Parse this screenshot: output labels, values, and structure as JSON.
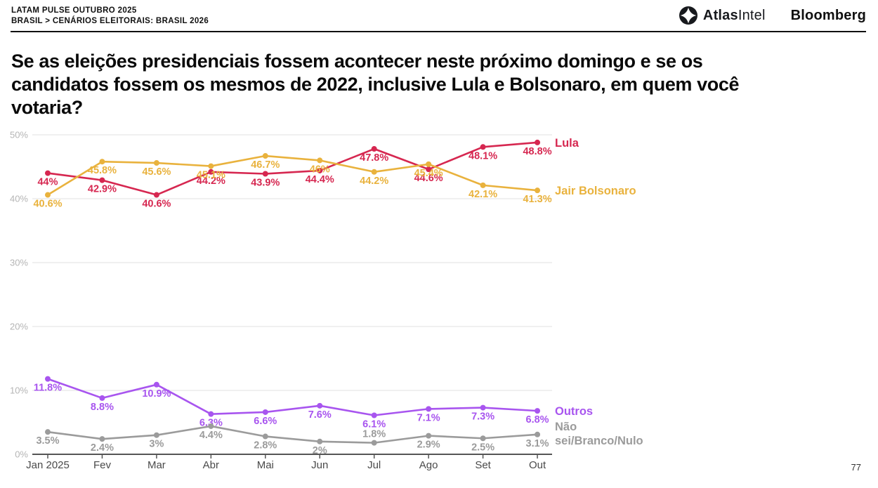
{
  "header": {
    "kicker_line1": "LATAM PULSE OUTUBRO 2025",
    "kicker_line2": "BRASIL > CENÁRIOS ELEITORAIS: BRASIL 2026",
    "atlas_logo_bold": "Atlas",
    "atlas_logo_regular": "Intel",
    "bloomberg_logo": "Bloomberg"
  },
  "title": "Se as eleições presidenciais fossem acontecer neste próximo domingo e se os candidatos fossem os mesmos de 2022, inclusive Lula e Bolsonaro, em quem você votaria?",
  "page_number": "77",
  "chart_data": {
    "type": "line",
    "x": [
      "Jan 2025",
      "Fev",
      "Mar",
      "Abr",
      "Mai",
      "Jun",
      "Jul",
      "Ago",
      "Set",
      "Out"
    ],
    "ylim": [
      0,
      50
    ],
    "yticks": [
      0,
      10,
      20,
      30,
      40,
      50
    ],
    "ytick_labels": [
      "0%",
      "10%",
      "20%",
      "30%",
      "40%",
      "50%"
    ],
    "grid": true,
    "legend_position": "right",
    "colors": {
      "grid": "#e7e7e7",
      "axis": "#555555",
      "ytick_label": "#b5b5b5",
      "xtick_label": "#4a4a4a"
    },
    "series": [
      {
        "name": "Lula",
        "color": "#d62750",
        "values": [
          44,
          42.9,
          40.6,
          44.2,
          43.9,
          44.4,
          47.8,
          44.6,
          48.1,
          48.8
        ],
        "labels": [
          "44%",
          "42.9%",
          "40.6%",
          "44.2%",
          "43.9%",
          "44.4%",
          "47.8%",
          "44.6%",
          "48.1%",
          "48.8%"
        ],
        "label_positions": [
          "below",
          "below",
          "below",
          "below",
          "below",
          "below",
          "below",
          "below",
          "below",
          "below"
        ]
      },
      {
        "name": "Jair Bolsonaro",
        "color": "#e9b23d",
        "values": [
          40.6,
          45.8,
          45.6,
          45.1,
          46.7,
          46,
          44.2,
          45.4,
          42.1,
          41.3
        ],
        "labels": [
          "40.6%",
          "45.8%",
          "45.6%",
          "45.1%",
          "46.7%",
          "46%",
          "44.2%",
          "45.4%",
          "42.1%",
          "41.3%"
        ],
        "label_positions": [
          "below",
          "below",
          "below",
          "below",
          "below",
          "below",
          "below",
          "below",
          "below",
          "below"
        ]
      },
      {
        "name": "Outros",
        "color": "#a855ef",
        "values": [
          11.8,
          8.8,
          10.9,
          6.3,
          6.6,
          7.6,
          6.1,
          7.1,
          7.3,
          6.8
        ],
        "labels": [
          "11.8%",
          "8.8%",
          "10.9%",
          "6.3%",
          "6.6%",
          "7.6%",
          "6.1%",
          "7.1%",
          "7.3%",
          "6.8%"
        ],
        "label_positions": [
          "below",
          "below",
          "below",
          "below",
          "below",
          "below",
          "below",
          "below",
          "below",
          "below"
        ]
      },
      {
        "name": "Não sei/Branco/Nulo",
        "legend_lines": [
          "Não",
          "sei/Branco/Nulo"
        ],
        "color": "#9b9b9b",
        "values": [
          3.5,
          2.4,
          3,
          4.4,
          2.8,
          2,
          1.8,
          2.9,
          2.5,
          3.1
        ],
        "labels": [
          "3.5%",
          "2.4%",
          "3%",
          "4.4%",
          "2.8%",
          "2%",
          "1.8%",
          "2.9%",
          "2.5%",
          "3.1%"
        ],
        "label_positions": [
          "below",
          "below",
          "below",
          "below",
          "below",
          "below",
          "above",
          "below",
          "below",
          "below"
        ]
      }
    ]
  }
}
